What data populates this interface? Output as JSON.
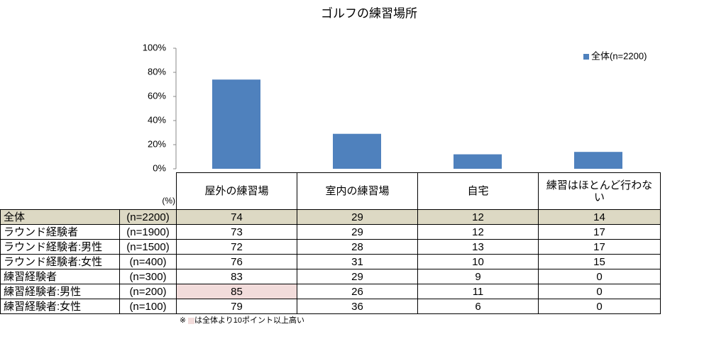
{
  "chart_data": {
    "type": "bar",
    "title": "ゴルフの練習場所",
    "categories": [
      "屋外の練習場",
      "室内の練習場",
      "自宅",
      "練習はほとんど行わない"
    ],
    "series": [
      {
        "name": "全体(n=2200)",
        "color": "#4f81bd",
        "values": [
          74,
          29,
          12,
          14
        ]
      }
    ],
    "ylim": [
      0,
      100
    ],
    "yticks": [
      {
        "value": 0,
        "label": "0%"
      },
      {
        "value": 20,
        "label": "20%"
      },
      {
        "value": 40,
        "label": "40%"
      },
      {
        "value": 60,
        "label": "60%"
      },
      {
        "value": 80,
        "label": "80%"
      },
      {
        "value": 100,
        "label": "100%"
      }
    ],
    "grid": false,
    "legend": "top-right"
  },
  "table": {
    "unit": "(%)",
    "total_row_color": "#ddd9c4",
    "highlight_color": "#f2dcdb",
    "highlight_cells": [
      [
        5,
        0
      ]
    ],
    "rows": [
      {
        "label": "全体",
        "n": "(n=2200)",
        "values": [
          74,
          29,
          12,
          14
        ]
      },
      {
        "label": "ラウンド経験者",
        "n": "(n=1900)",
        "values": [
          73,
          29,
          12,
          17
        ]
      },
      {
        "label": "ラウンド経験者:男性",
        "n": "(n=1500)",
        "values": [
          72,
          28,
          13,
          17
        ]
      },
      {
        "label": "ラウンド経験者:女性",
        "n": "(n=400)",
        "values": [
          76,
          31,
          10,
          15
        ]
      },
      {
        "label": "練習経験者",
        "n": "(n=300)",
        "values": [
          83,
          29,
          9,
          0
        ]
      },
      {
        "label": "練習経験者:男性",
        "n": "(n=200)",
        "values": [
          85,
          26,
          11,
          0
        ]
      },
      {
        "label": "練習経験者:女性",
        "n": "(n=100)",
        "values": [
          79,
          36,
          6,
          0
        ]
      }
    ],
    "note_prefix": "※",
    "note": "は全体より10ポイント以上高い"
  }
}
